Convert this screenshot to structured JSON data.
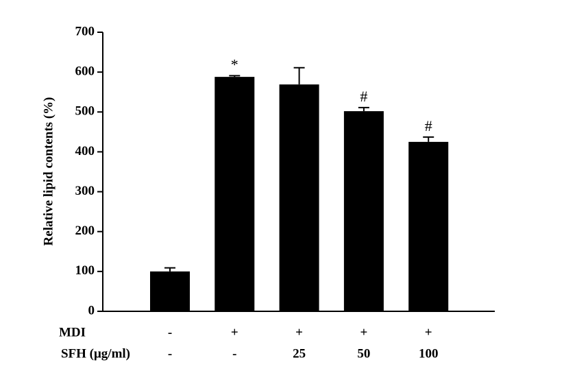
{
  "chart_data": {
    "type": "bar",
    "y_label": "Relative lipid contents (%)",
    "categories": [
      null,
      null,
      null,
      null,
      null
    ],
    "values": [
      100,
      588,
      569,
      502,
      425
    ],
    "errors": [
      9,
      3,
      42,
      9,
      12
    ],
    "annotations": [
      null,
      "*",
      null,
      "#",
      "#"
    ],
    "color": "#000000",
    "ylim": [
      0,
      700
    ],
    "yticks": [
      0,
      100,
      200,
      300,
      400,
      500,
      600,
      700
    ],
    "grid": false,
    "treatment_table": {
      "rows": [
        {
          "label": "MDI",
          "cells": [
            "-",
            "+",
            "+",
            "+",
            "+"
          ]
        },
        {
          "label": "SFH (μg/ml)",
          "cells": [
            "-",
            "-",
            "25",
            "50",
            "100"
          ]
        }
      ]
    }
  }
}
